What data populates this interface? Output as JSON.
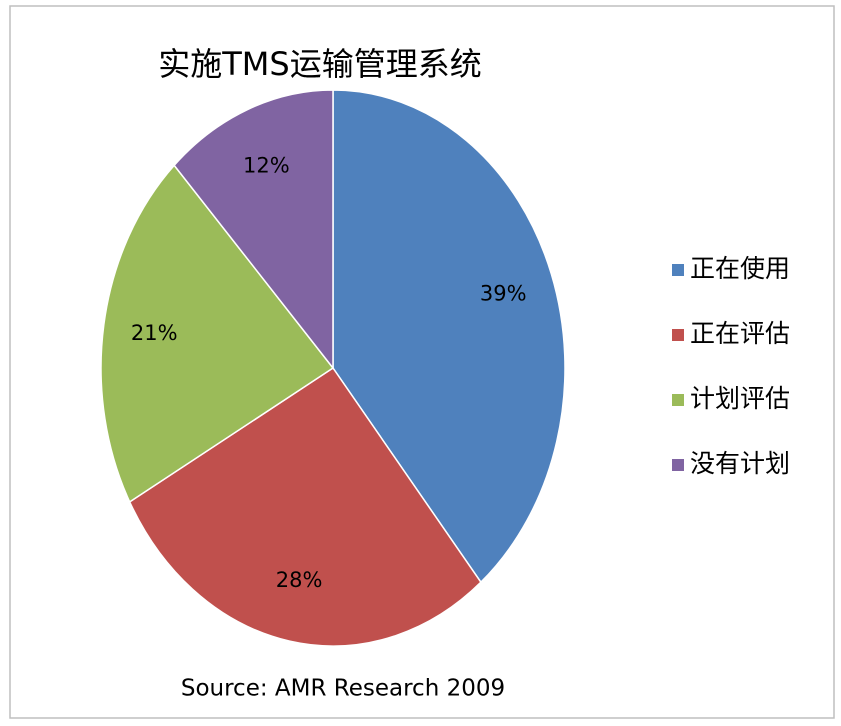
{
  "chart_data": {
    "type": "pie",
    "title": "实施TMS运输管理系统",
    "source": "Source: AMR Research 2009",
    "categories": [
      "正在使用",
      "正在评估",
      "计划评估",
      "没有计划"
    ],
    "values": [
      39,
      28,
      21,
      12
    ],
    "value_labels": [
      "39%",
      "28%",
      "21%",
      "12%"
    ],
    "colors": [
      "#4f81bd",
      "#c0504d",
      "#9bbb59",
      "#8064a2"
    ],
    "legend": "right"
  }
}
